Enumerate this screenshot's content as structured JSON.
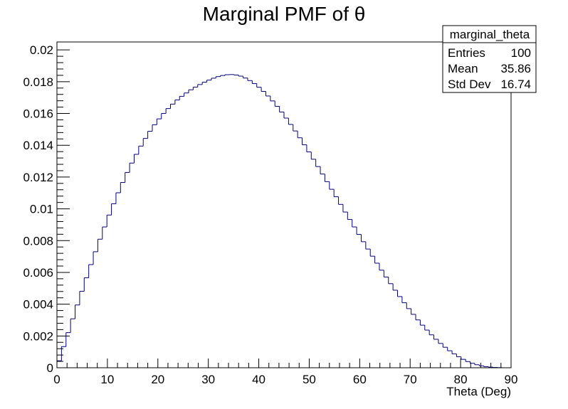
{
  "chart_data": {
    "type": "histogram-step",
    "title": "Marginal PMF of θ",
    "xlabel": "Theta (Deg)",
    "ylabel": "",
    "xlim": [
      0,
      90
    ],
    "ylim": [
      0,
      0.0205
    ],
    "x_ticks": [
      0,
      10,
      20,
      30,
      40,
      50,
      60,
      70,
      80,
      90
    ],
    "x_tick_labels": [
      "0",
      "10",
      "20",
      "30",
      "40",
      "50",
      "60",
      "70",
      "80",
      "90"
    ],
    "y_ticks": [
      0,
      0.002,
      0.004,
      0.006,
      0.008,
      0.01,
      0.012,
      0.014,
      0.016,
      0.018,
      0.02
    ],
    "y_tick_labels": [
      "0",
      "0.002",
      "0.004",
      "0.006",
      "0.008",
      "0.01",
      "0.012",
      "0.014",
      "0.016",
      "0.018",
      "0.02"
    ],
    "grid": false,
    "line_color": "#000080",
    "bins": 100,
    "bin_width": 0.9,
    "values": [
      0.00044,
      0.00133,
      0.00221,
      0.00308,
      0.00395,
      0.00481,
      0.00566,
      0.00649,
      0.0073,
      0.00809,
      0.00886,
      0.00961,
      0.01032,
      0.01101,
      0.01166,
      0.01229,
      0.01288,
      0.01343,
      0.01395,
      0.01443,
      0.01488,
      0.01529,
      0.01566,
      0.016,
      0.01631,
      0.01659,
      0.01685,
      0.01708,
      0.01729,
      0.01749,
      0.01766,
      0.01782,
      0.01797,
      0.0181,
      0.01822,
      0.01832,
      0.01839,
      0.01844,
      0.01845,
      0.01842,
      0.01835,
      0.01823,
      0.01807,
      0.01788,
      0.01765,
      0.01739,
      0.0171,
      0.01679,
      0.01645,
      0.01609,
      0.01571,
      0.01531,
      0.0149,
      0.01447,
      0.01403,
      0.01358,
      0.01312,
      0.01266,
      0.01219,
      0.01171,
      0.01123,
      0.01076,
      0.01028,
      0.0098,
      0.00933,
      0.00886,
      0.00839,
      0.00793,
      0.00747,
      0.00702,
      0.00658,
      0.00614,
      0.00571,
      0.00529,
      0.00488,
      0.00448,
      0.00409,
      0.00372,
      0.00336,
      0.00301,
      0.00268,
      0.00237,
      0.00207,
      0.00179,
      0.00153,
      0.00129,
      0.00107,
      0.00087,
      0.00069,
      0.00053,
      0.00039,
      0.00028,
      0.00019,
      0.00012,
      7e-05,
      4e-05,
      2e-05,
      1e-05,
      0.0,
      0.0
    ]
  },
  "stats_box": {
    "name": "marginal_theta",
    "rows": [
      {
        "label": "Entries",
        "value": "100"
      },
      {
        "label": "Mean",
        "value": "35.86"
      },
      {
        "label": "Std Dev",
        "value": "16.74"
      }
    ]
  }
}
